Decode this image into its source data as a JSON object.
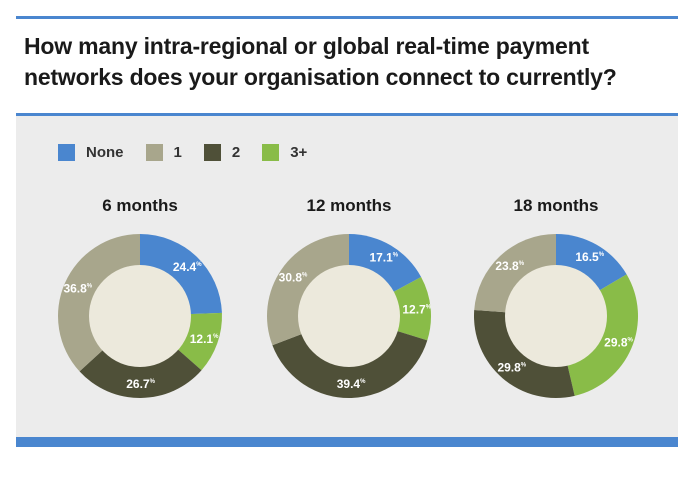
{
  "title": "How many intra-regional or global real-time payment networks does your organisation connect to currently?",
  "legend": [
    {
      "label": "None",
      "color": "#4a86cf"
    },
    {
      "label": "1",
      "color": "#a8a68c"
    },
    {
      "label": "2",
      "color": "#4f5038"
    },
    {
      "label": "3+",
      "color": "#89bc48"
    }
  ],
  "chart_data": [
    {
      "type": "pie",
      "title": "6 months",
      "categories": [
        "None",
        "3+",
        "2",
        "1"
      ],
      "values": [
        24.4,
        12.1,
        26.7,
        36.8
      ],
      "labels": [
        "24.4",
        "12.1",
        "26.7",
        "36.8"
      ]
    },
    {
      "type": "pie",
      "title": "12 months",
      "categories": [
        "None",
        "3+",
        "2",
        "1"
      ],
      "values": [
        17.1,
        12.7,
        39.4,
        30.8
      ],
      "labels": [
        "17.1",
        "12.7",
        "39.4",
        "30.8"
      ]
    },
    {
      "type": "pie",
      "title": "18 months",
      "categories": [
        "None",
        "3+",
        "2",
        "1"
      ],
      "values": [
        16.5,
        29.8,
        29.8,
        23.8
      ],
      "labels": [
        "16.5",
        "29.8",
        "29.8",
        "23.8"
      ]
    }
  ],
  "colors": {
    "None": "#4a86cf",
    "1": "#a8a68c",
    "2": "#4f5038",
    "3+": "#89bc48",
    "hole": "#ece9dc",
    "accent": "#4a86cf"
  },
  "percent_symbol": "%"
}
